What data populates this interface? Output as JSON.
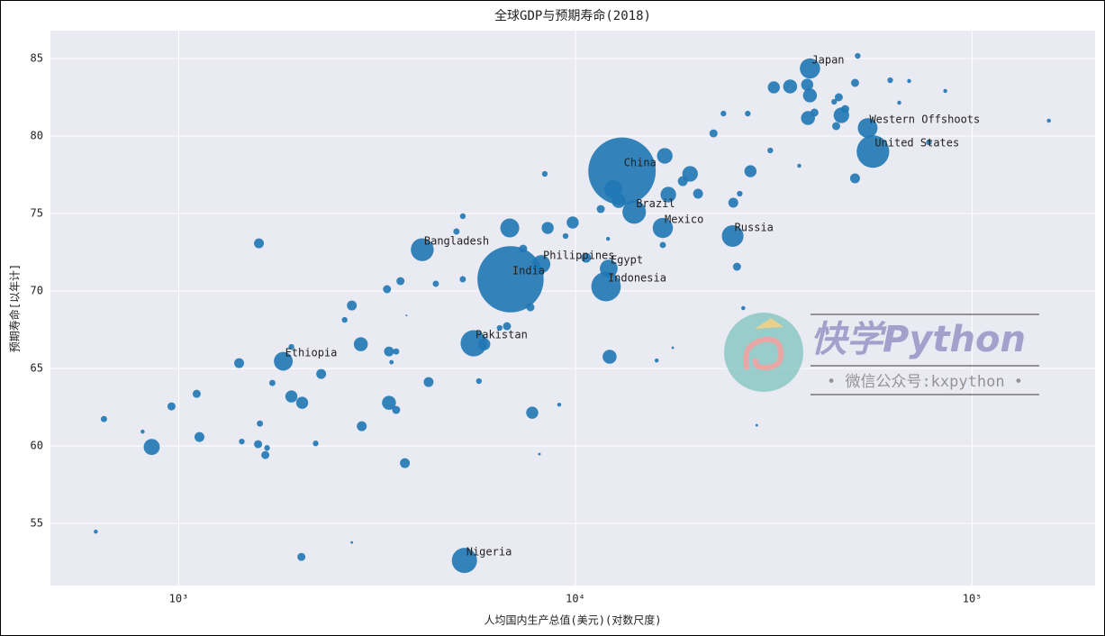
{
  "chart_data": {
    "type": "scatter",
    "title": "全球GDP与预期寿命(2018)",
    "xlabel": "人均国内生产总值(美元)(对数尺度)",
    "ylabel": "预期寿命[以年计]",
    "xlog": true,
    "grid": true,
    "color": "#1f77b4",
    "xlim": [
      475,
      204000
    ],
    "ylim": [
      51,
      86.8
    ],
    "xticks": [
      {
        "value": 1000,
        "label": "10³"
      },
      {
        "value": 10000,
        "label": "10⁴"
      },
      {
        "value": 100000,
        "label": "10⁵"
      }
    ],
    "yticks": [
      55,
      60,
      65,
      70,
      75,
      80,
      85
    ],
    "x": [
      39000,
      54500,
      56200,
      13100,
      14060,
      16600,
      24900,
      4110,
      8200,
      12130,
      6860,
      11940,
      5540,
      1835,
      5250,
      618,
      648,
      855,
      811,
      959,
      1110,
      1128,
      1420,
      1593,
      1442,
      1585,
      1602,
      1653,
      1670,
      1722,
      1923,
      1923,
      2047,
      2038,
      2286,
      2214,
      2620,
      2731,
      2731,
      2877,
      2893,
      3350,
      3388,
      3388,
      3532,
      3532,
      3438,
      3622,
      3716,
      3750,
      4264,
      4446,
      5200,
      5012,
      5200,
      5710,
      5890,
      6720,
      6830,
      6440,
      7380,
      7700,
      7780,
      8370,
      8510,
      8110,
      9100,
      9440,
      9840,
      10640,
      12190,
      11580,
      12080,
      12850,
      12450,
      16020,
      16790,
      17140,
      18640,
      19450,
      20370,
      17590,
      16600,
      22280,
      23600,
      24990,
      25530,
      25940,
      26480,
      27610,
      27180,
      28640,
      30970,
      31620,
      34760,
      36640,
      38370,
      38990,
      38550,
      40020,
      44870,
      46100,
      45400,
      46800,
      47840,
      50650,
      51440,
      50650,
      62130,
      65460,
      69330,
      85510,
      156000,
      77800
    ],
    "values": [
      84.36,
      80.52,
      79.0,
      77.73,
      75.1,
      74.07,
      73.55,
      72.67,
      71.74,
      71.45,
      70.76,
      70.29,
      66.63,
      65.47,
      52.62,
      54.48,
      61.74,
      59.94,
      60.93,
      62.56,
      63.37,
      60.58,
      65.35,
      73.08,
      60.29,
      60.12,
      61.45,
      59.42,
      59.88,
      64.07,
      63.2,
      66.4,
      62.79,
      52.85,
      64.65,
      60.17,
      68.14,
      69.07,
      53.78,
      66.57,
      61.28,
      70.12,
      66.1,
      62.79,
      66.1,
      62.33,
      65.41,
      70.64,
      58.9,
      68.43,
      64.13,
      70.47,
      74.83,
      73.84,
      70.76,
      64.19,
      66.57,
      67.73,
      74.07,
      67.62,
      72.73,
      68.95,
      62.15,
      77.56,
      74.07,
      59.48,
      62.67,
      73.55,
      74.42,
      72.15,
      65.76,
      75.29,
      73.37,
      75.81,
      76.57,
      65.52,
      78.72,
      76.22,
      77.09,
      77.56,
      76.28,
      66.34,
      72.97,
      80.17,
      81.45,
      75.7,
      71.57,
      76.28,
      68.9,
      77.73,
      81.45,
      61.34,
      79.07,
      83.14,
      83.2,
      78.08,
      83.31,
      82.62,
      81.16,
      81.51,
      82.21,
      82.5,
      80.64,
      81.34,
      81.74,
      83.43,
      85.17,
      77.27,
      83.6,
      82.15,
      83.55,
      82.91,
      80.99,
      79.59
    ],
    "sizes": [
      127,
      120,
      327,
      1400,
      170,
      126,
      145,
      161,
      100,
      98,
      1353,
      268,
      212,
      109,
      196,
      5,
      12,
      80,
      5,
      20,
      20,
      30,
      30,
      30,
      10,
      20,
      12,
      20,
      10,
      12,
      45,
      10,
      45,
      20,
      30,
      10,
      10,
      30,
      2,
      60,
      30,
      20,
      30,
      60,
      12,
      20,
      6,
      20,
      30,
      1,
      30,
      12,
      10,
      12,
      12,
      10,
      45,
      20,
      110,
      10,
      20,
      20,
      45,
      10,
      45,
      2,
      5,
      10,
      45,
      30,
      60,
      20,
      5,
      60,
      100,
      5,
      75,
      75,
      30,
      75,
      30,
      2,
      12,
      20,
      10,
      30,
      20,
      10,
      5,
      45,
      10,
      2,
      10,
      45,
      60,
      5,
      45,
      60,
      60,
      20,
      10,
      20,
      20,
      75,
      20,
      20,
      10,
      30,
      10,
      5,
      5,
      5,
      5,
      10
    ],
    "labels": [
      "Japan",
      "Western Offshoots",
      "United States",
      "China",
      "Brazil",
      "Mexico",
      "Russia",
      "Bangladesh",
      "Philippines",
      "Egypt",
      "India",
      "Indonesia",
      "Pakistan",
      "Ethiopia",
      "Nigeria",
      null,
      null,
      null,
      null,
      null,
      null,
      null,
      null,
      null,
      null,
      null,
      null,
      null,
      null,
      null,
      null,
      null,
      null,
      null,
      null,
      null,
      null,
      null,
      null,
      null,
      null,
      null,
      null,
      null,
      null,
      null,
      null,
      null,
      null,
      null,
      null,
      null,
      null,
      null,
      null,
      null,
      null,
      null,
      null,
      null,
      null,
      null,
      null,
      null,
      null,
      null,
      null,
      null,
      null,
      null,
      null,
      null,
      null,
      null,
      null,
      null,
      null,
      null,
      null,
      null,
      null,
      null,
      null,
      null,
      null,
      null,
      null,
      null,
      null,
      null,
      null,
      null,
      null,
      null,
      null,
      null,
      null,
      null,
      null,
      null,
      null,
      null,
      null,
      null,
      null,
      null,
      null,
      null,
      null,
      null,
      null,
      null,
      null,
      null
    ]
  },
  "watermark": {
    "title": "快学Python",
    "subtitle": "• 微信公众号:kxpython •"
  }
}
